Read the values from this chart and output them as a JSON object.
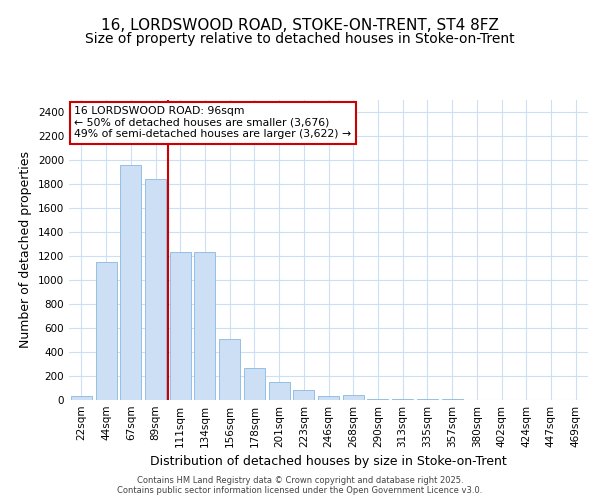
{
  "title1": "16, LORDSWOOD ROAD, STOKE-ON-TRENT, ST4 8FZ",
  "title2": "Size of property relative to detached houses in Stoke-on-Trent",
  "xlabel": "Distribution of detached houses by size in Stoke-on-Trent",
  "ylabel": "Number of detached properties",
  "categories": [
    "22sqm",
    "44sqm",
    "67sqm",
    "89sqm",
    "111sqm",
    "134sqm",
    "156sqm",
    "178sqm",
    "201sqm",
    "223sqm",
    "246sqm",
    "268sqm",
    "290sqm",
    "313sqm",
    "335sqm",
    "357sqm",
    "380sqm",
    "402sqm",
    "424sqm",
    "447sqm",
    "469sqm"
  ],
  "values": [
    30,
    1150,
    1960,
    1840,
    1230,
    1230,
    510,
    270,
    150,
    80,
    35,
    40,
    10,
    10,
    5,
    5,
    3,
    2,
    2,
    1,
    1
  ],
  "bar_color": "#ccdff5",
  "bar_edge_color": "#8ab8e0",
  "vline_x_idx": 3,
  "vline_color": "#cc0000",
  "annotation_text": "16 LORDSWOOD ROAD: 96sqm\n← 50% of detached houses are smaller (3,676)\n49% of semi-detached houses are larger (3,622) →",
  "annotation_box_facecolor": "#ffffff",
  "annotation_box_edgecolor": "#cc0000",
  "ylim": [
    0,
    2500
  ],
  "yticks": [
    0,
    200,
    400,
    600,
    800,
    1000,
    1200,
    1400,
    1600,
    1800,
    2000,
    2200,
    2400
  ],
  "plot_bg_color": "#ffffff",
  "fig_bg_color": "#ffffff",
  "grid_color": "#ccdff5",
  "title_fontsize": 11,
  "subtitle_fontsize": 10,
  "tick_fontsize": 7.5,
  "ylabel_fontsize": 9,
  "xlabel_fontsize": 9,
  "footer_text": "Contains HM Land Registry data © Crown copyright and database right 2025.\nContains public sector information licensed under the Open Government Licence v3.0."
}
